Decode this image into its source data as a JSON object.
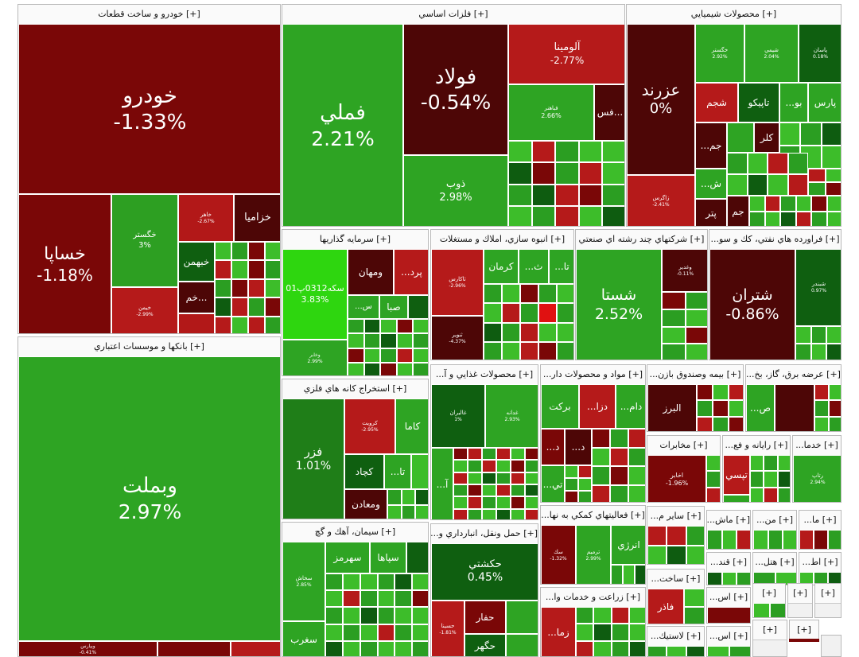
{
  "colors": {
    "dark_red": "#5a0606",
    "red": "#b01717",
    "maroon": "#7d0a0a",
    "dark_green": "#0e5c10",
    "green": "#2b9e22",
    "light_green": "#3dbd2a",
    "bright_green": "#2ed60f"
  },
  "sections": {
    "khodro": {
      "title": "[+] خودرو و ساخت قطعات",
      "tiles": {
        "khodro": {
          "name": "خودرو",
          "pct": "-1.33%"
        },
        "khsapa": {
          "name": "خساپا",
          "pct": "-1.18%"
        },
        "khgostar": {
          "name": "خگستر",
          "pct": "3%"
        },
        "khazamia": {
          "name": "خزاميا"
        },
        "khbahman": {
          "name": "خبهمن"
        },
        "kham": {
          "name": "خم..."
        },
        "khamhr": {
          "name": "خاهر",
          "pct": "-2.67%"
        },
        "kheymen": {
          "name": "خيمن",
          "pct": "-2.99%"
        }
      }
    },
    "felezat": {
      "title": "[+] فلزات اساسي",
      "tiles": {
        "fameli": {
          "name": "فملي",
          "pct": "2.21%"
        },
        "foolad": {
          "name": "فولاد",
          "pct": "-0.54%"
        },
        "aloumina": {
          "name": "آلومينا",
          "pct": "-2.77%"
        },
        "zob": {
          "name": "ذوب",
          "pct": "2.98%"
        },
        "fahr": {
          "name": "فباهنر",
          "pct": "2.66%"
        },
        "fs": {
          "name": "فس..."
        }
      }
    },
    "shimiaei": {
      "title": "[+] محصولات شيميايي",
      "tiles": {
        "azarnd": {
          "name": "عزرند",
          "pct": "0%"
        },
        "zagros": {
          "name": "زاگرس",
          "pct": "-2.41%"
        },
        "khgostar2": {
          "name": "خگستر",
          "pct": "2.92%"
        },
        "shimia": {
          "name": "شيمي",
          "pct": "2.04%"
        },
        "pasn": {
          "name": "پاسان",
          "pct": "0.18%"
        },
        "shajam": {
          "name": "شجم"
        },
        "tapico": {
          "name": "تاپيكو"
        },
        "bo": {
          "name": "...بو"
        },
        "pars": {
          "name": "پارس"
        },
        "jam": {
          "name": "...جم"
        },
        "kelor": {
          "name": "كلر"
        },
        "sh": {
          "name": "...ش"
        },
        "petr": {
          "name": "پتر"
        },
        "jam2": {
          "name": "جم"
        }
      }
    },
    "banks": {
      "title": "[+] بانكها و موسسات اعتباري",
      "tiles": {
        "vbemellat": {
          "name": "وبملت",
          "pct": "2.97%"
        },
        "vbpars": {
          "name": "وبپارس",
          "pct": "-0.41%"
        }
      }
    },
    "sarmayeh": {
      "title": "[+] سرمايه گذاريها",
      "tiles": {
        "seke": {
          "name": "سكه0312پ01",
          "pct": "3.83%"
        },
        "vmahan": {
          "name": "ومهان"
        },
        "prd": {
          "name": "...پرد"
        },
        "s": {
          "name": "...س"
        },
        "saba": {
          "name": "صبا"
        },
        "vkhbar": {
          "name": "وخابر",
          "pct": "2.99%"
        }
      }
    },
    "anboh": {
      "title": "[+] انبوه سازي، املاك و مستغلات",
      "tiles": {
        "thakaris": {
          "name": "ثاكارس",
          "pct": "-2.96%"
        },
        "kerman": {
          "name": "كرمان"
        },
        "th": {
          "name": "...ث"
        },
        "ta": {
          "name": "...تا"
        },
        "tanvir": {
          "name": "ثنوير",
          "pct": "-4.37%"
        }
      }
    },
    "chand": {
      "title": "[+] شركتهاي چند رشته اي صنعتي",
      "tiles": {
        "shasta": {
          "name": "شستا",
          "pct": "2.52%"
        },
        "vghadir": {
          "name": "وغدير",
          "pct": "-0.11%"
        }
      }
    },
    "naft": {
      "title": "[+] فراورده هاي نفتي، كك و سو...",
      "tiles": {
        "shetran": {
          "name": "شتران",
          "pct": "-0.86%"
        },
        "shbandar": {
          "name": "شبندر",
          "pct": "0.97%"
        }
      }
    },
    "estekhraj": {
      "title": "[+] استخراج كانه هاي فلزي",
      "tiles": {
        "fazr": {
          "name": "فزر",
          "pct": "1.01%"
        },
        "krovit": {
          "name": "كرويت",
          "pct": "-2.95%"
        },
        "kama": {
          "name": "كاما"
        },
        "kechad": {
          "name": "كچاد"
        },
        "ta2": {
          "name": "...تا"
        },
        "vmaaden": {
          "name": "ومعادن"
        }
      }
    },
    "ghazaei": {
      "title": "[+] محصولات غذايي و آ...",
      "tiles": {
        "ghaliran": {
          "name": "غالبران",
          "pct": "1%"
        },
        "ghadaneh": {
          "name": "غدانه",
          "pct": "2.93%"
        },
        "a": {
          "name": "...آ"
        }
      }
    },
    "mavad": {
      "title": "[+] مواد و محصولات دار...",
      "tiles": {
        "barakat": {
          "name": "بركت"
        },
        "dza": {
          "name": "...دزا"
        },
        "dam": {
          "name": "...دام"
        },
        "d1": {
          "name": "...د"
        },
        "d2": {
          "name": "...د"
        },
        "ti": {
          "name": "...تي"
        }
      }
    },
    "bimeh": {
      "title": "[+] بيمه وصندوق بازن...",
      "tiles": {
        "albrz": {
          "name": "البرز"
        }
      }
    },
    "arzeh": {
      "title": "[+] عرضه برق، گاز، بخ...",
      "tiles": {
        "s": {
          "name": "...ص"
        }
      }
    },
    "siman": {
      "title": "[+] سيمان، آهك و گچ",
      "tiles": {
        "sepaha": {
          "name": "سپاها"
        },
        "sahermz": {
          "name": "سهرمز"
        },
        "sakhash": {
          "name": "سخاش",
          "pct": "2.85%"
        },
        "sgharb": {
          "name": "سغرب"
        }
      }
    },
    "haml": {
      "title": "[+] حمل ونقل، انبارداري و...",
      "tiles": {
        "hakeshti": {
          "name": "حكشتي",
          "pct": "0.45%"
        },
        "hafar": {
          "name": "حفار"
        },
        "hasina": {
          "name": "حسينا",
          "pct": "-1.81%"
        },
        "hagehr": {
          "name": "حگهر"
        }
      }
    },
    "mokhaberat": {
      "title": "[+] مخابرات",
      "tiles": {
        "akhaber": {
          "name": "اخابر",
          "pct": "-1.96%"
        }
      }
    },
    "rayaneh": {
      "title": "[+] رايانه و فع...",
      "tiles": {
        "tapsi": {
          "name": "تپسي"
        }
      }
    },
    "khadamat": {
      "title": "[+] خدما...",
      "tiles": {
        "rtapa": {
          "name": "رتاپ",
          "pct": "2.94%"
        }
      }
    },
    "faaliat": {
      "title": "[+] فعاليتهاي كمكي به نها...",
      "tiles": {
        "sink": {
          "name": "سك",
          "pct": "-1.32%"
        },
        "tarmim": {
          "name": "ترميم",
          "pct": "2.99%"
        },
        "enerzhi": {
          "name": "انرژي"
        }
      }
    },
    "sayer": {
      "title": "[+] ساير م..."
    },
    "mash": {
      "title": "[+] ماش..."
    },
    "mn": {
      "title": "[+] من..."
    },
    "ma": {
      "title": "[+] ما..."
    },
    "sakht": {
      "title": "[+] ساخت...",
      "tiles": {
        "fazr2": {
          "name": "فاذر"
        }
      }
    },
    "ghand": {
      "title": "[+] قند..."
    },
    "hotel": {
      "title": "[+] هتل..."
    },
    "ata": {
      "title": "[+] اط..."
    },
    "zeraat": {
      "title": "[+] زراعت و خدمات وا...",
      "tiles": {
        "zama": {
          "name": "...زما"
        }
      }
    },
    "as": {
      "title": "[+] اس..."
    },
    "misc1": {
      "title": "[+]"
    },
    "misc2": {
      "title": "[+]"
    },
    "misc3": {
      "title": "[+]"
    },
    "misc4": {
      "title": "[+]"
    },
    "lastik": {
      "title": "[+] لاستيك..."
    },
    "as2": {
      "title": "[+] اس..."
    },
    "misc5": {
      "title": "[+]"
    }
  }
}
